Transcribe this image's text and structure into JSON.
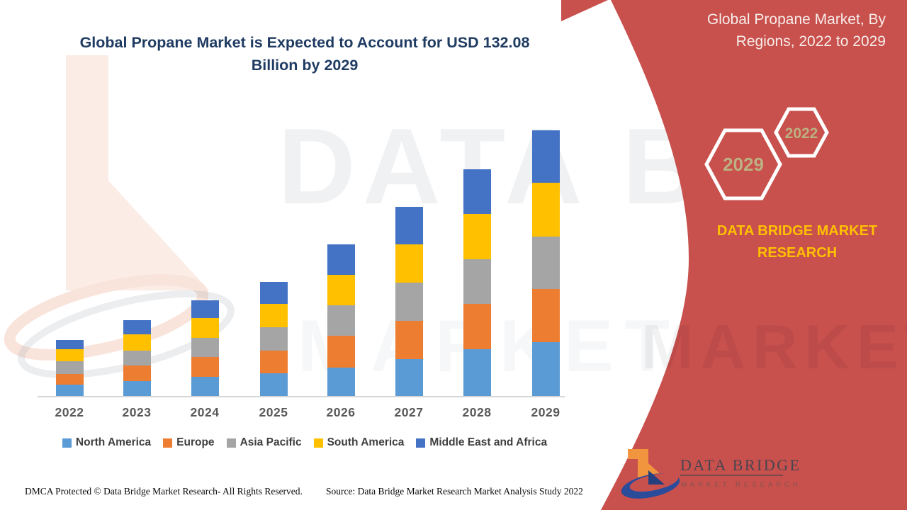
{
  "header": {
    "chart_title": "Global Propane Market is Expected to Account for USD 132.08 Billion by 2029"
  },
  "right_panel": {
    "title": "Global Propane Market, By Regions, 2022 to 2029",
    "hexagons": [
      {
        "label": "2029"
      },
      {
        "label": "2022"
      }
    ],
    "brand_text": "DATA BRIDGE MARKET RESEARCH",
    "logo_title": "DATA BRIDGE",
    "logo_subtitle": "MARKET RESEARCH"
  },
  "watermark": {
    "primary": "DATA BRIDGE",
    "secondary": "MARKET RESEARCH"
  },
  "colors": {
    "accent_red": "#C8504D",
    "title_navy": "#1F3B62",
    "brand_yellow": "#FFC000",
    "hexagon_year": "#BCB183"
  },
  "chart_data": {
    "type": "bar",
    "stacked": true,
    "title": "Global Propane Market is Expected to Account for USD 132.08 Billion by 2029",
    "unit": "USD Billion",
    "categories": [
      "2022",
      "2023",
      "2024",
      "2025",
      "2026",
      "2027",
      "2028",
      "2029"
    ],
    "series": [
      {
        "name": "North America",
        "color": "#5B9BD5",
        "values": [
          5.6,
          7.4,
          9.5,
          11.2,
          14.1,
          18.3,
          23.2,
          26.8
        ]
      },
      {
        "name": "Europe",
        "color": "#ED7D31",
        "values": [
          5.3,
          7.7,
          9.8,
          11.4,
          15.8,
          19.0,
          22.5,
          26.4
        ]
      },
      {
        "name": "Asia Pacific",
        "color": "#A5A5A5",
        "values": [
          6.3,
          7.4,
          9.5,
          11.6,
          15.1,
          19.0,
          22.2,
          26.1
        ]
      },
      {
        "name": "South America",
        "color": "#FFC000",
        "values": [
          6.0,
          8.1,
          9.8,
          11.6,
          15.2,
          19.0,
          22.5,
          26.7
        ]
      },
      {
        "name": "Middle East and Africa",
        "color": "#4472C4",
        "values": [
          4.6,
          7.1,
          8.9,
          10.9,
          15.2,
          18.7,
          22.3,
          26.08
        ]
      }
    ],
    "totals_estimated": [
      27.8,
      37.7,
      47.5,
      56.7,
      75.4,
      94.0,
      112.7,
      132.08
    ],
    "ylim": [
      0,
      140
    ],
    "gridlines": false,
    "legend_position": "bottom"
  },
  "footer": {
    "left": "DMCA Protected © Data Bridge Market Research- All Rights Reserved.",
    "source": "Source: Data Bridge Market Research Market Analysis Study 2022"
  }
}
